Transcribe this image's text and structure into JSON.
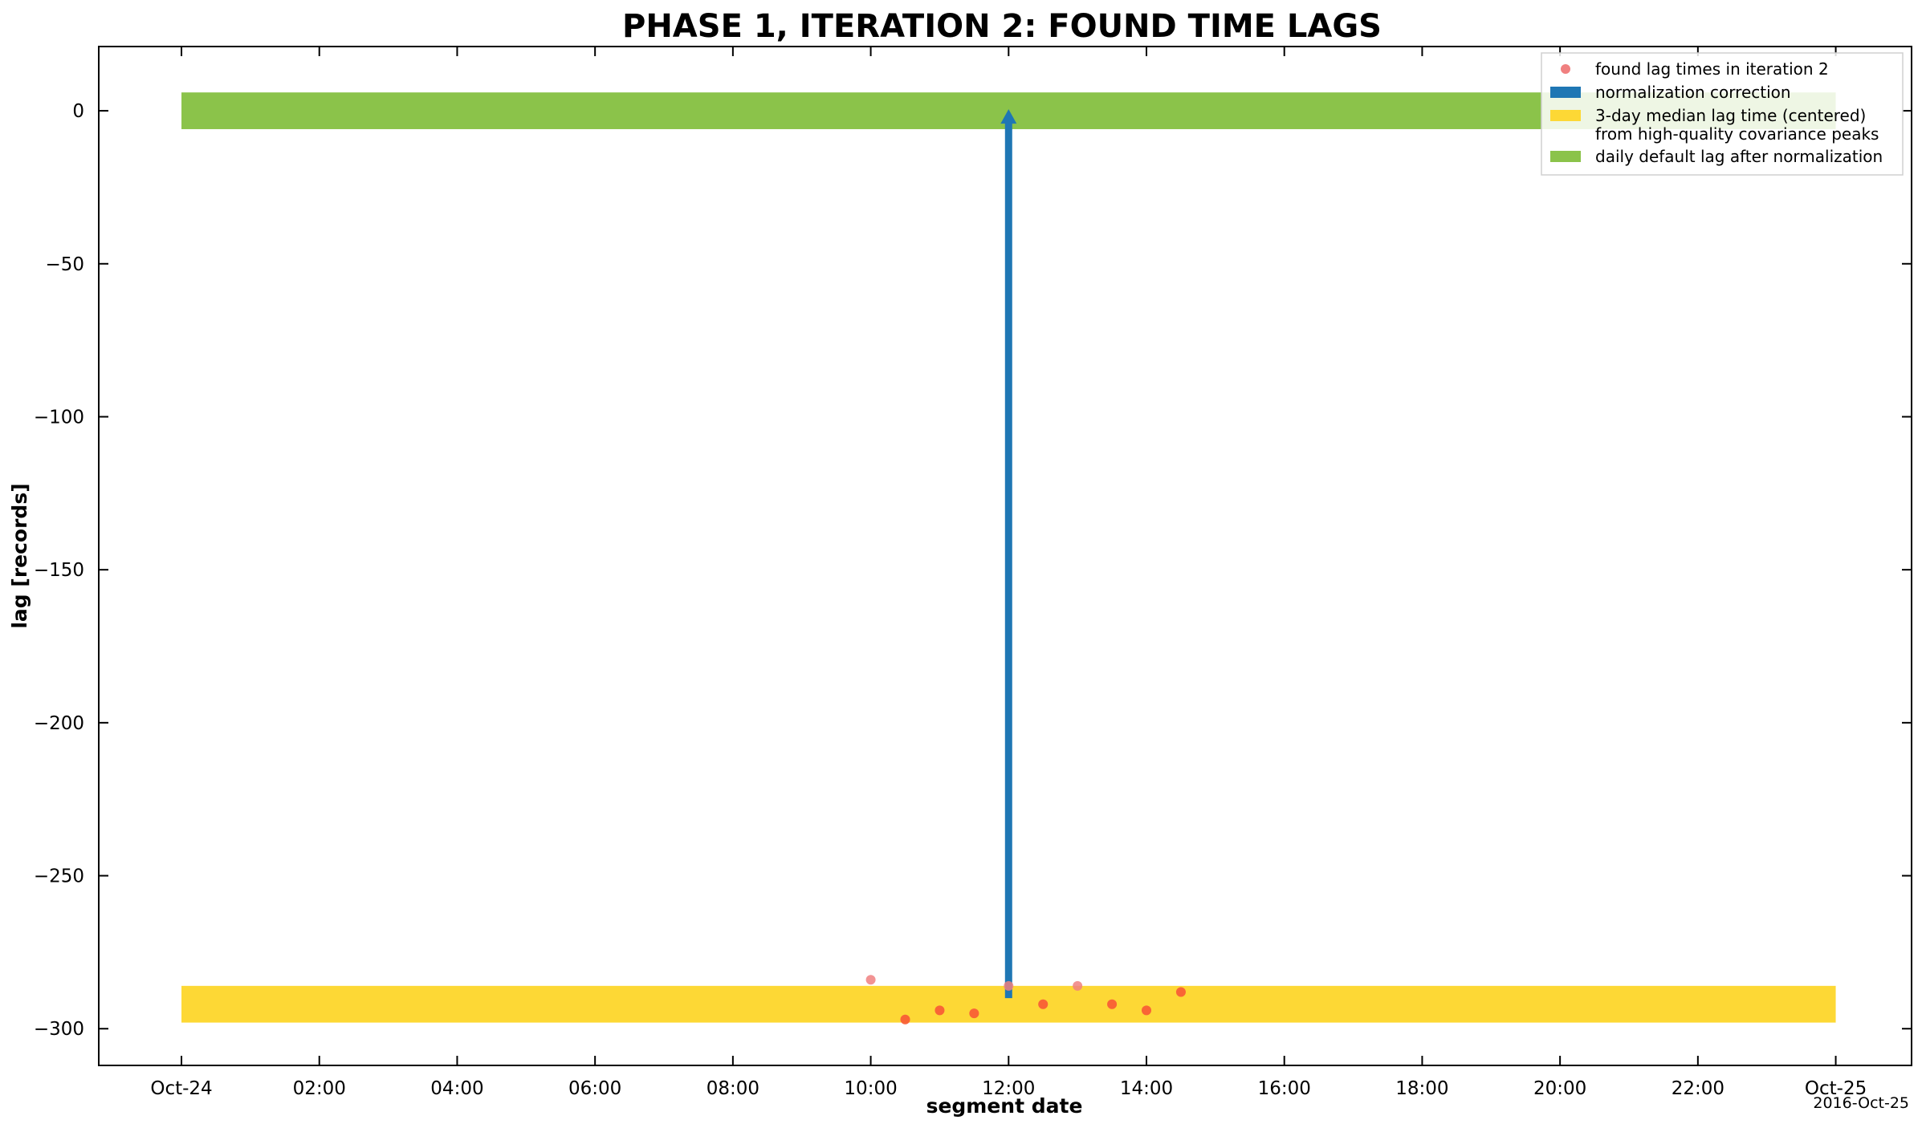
{
  "chart_data": {
    "type": "scatter",
    "title": "PHASE 1, ITERATION 2: FOUND TIME LAGS",
    "xlabel": "segment date",
    "ylabel": "lag  [records]",
    "corner_note": "2016-Oct-25",
    "x_range_hours": [
      -2.4,
      50.2
    ],
    "ylim": [
      -312,
      21
    ],
    "x_ticks": [
      {
        "hour": 0,
        "label": "Oct-24"
      },
      {
        "hour": 4,
        "label": "02:00"
      },
      {
        "hour": 8,
        "label": "04:00"
      },
      {
        "hour": 12,
        "label": "06:00"
      },
      {
        "hour": 16,
        "label": "08:00"
      },
      {
        "hour": 20,
        "label": "10:00"
      },
      {
        "hour": 24,
        "label": "12:00"
      },
      {
        "hour": 28,
        "label": "14:00"
      },
      {
        "hour": 32,
        "label": "16:00"
      },
      {
        "hour": 36,
        "label": "18:00"
      },
      {
        "hour": 40,
        "label": "20:00"
      },
      {
        "hour": 44,
        "label": "22:00"
      },
      {
        "hour": 48,
        "label": "Oct-25"
      }
    ],
    "y_ticks": [
      {
        "value": 0,
        "label": "0"
      },
      {
        "value": -50,
        "label": "−50"
      },
      {
        "value": -100,
        "label": "−100"
      },
      {
        "value": -150,
        "label": "−150"
      },
      {
        "value": -200,
        "label": "−200"
      },
      {
        "value": -250,
        "label": "−250"
      },
      {
        "value": -300,
        "label": "−300"
      }
    ],
    "grid": false,
    "legend_position": "top-right",
    "series": [
      {
        "name": "found lag times in iteration 2",
        "kind": "scatter",
        "color": "#f08080",
        "points": [
          {
            "time": "10:00",
            "y": -284
          },
          {
            "time": "10:30",
            "y": -297
          },
          {
            "time": "11:00",
            "y": -294
          },
          {
            "time": "11:30",
            "y": -295
          },
          {
            "time": "12:00",
            "y": -286
          },
          {
            "time": "12:30",
            "y": -292
          },
          {
            "time": "13:00",
            "y": -286
          },
          {
            "time": "13:30",
            "y": -292
          },
          {
            "time": "14:00",
            "y": -294
          },
          {
            "time": "14:30",
            "y": -288
          }
        ]
      },
      {
        "name": "normalization correction",
        "kind": "arrow",
        "color": "#1f77b4",
        "time": "12:00",
        "from": -290,
        "to": 0
      },
      {
        "name": "3-day median lag time (centered)\nfrom high-quality covariance peaks",
        "kind": "band",
        "color": "#fdd835",
        "start": "Oct-24",
        "end": "Oct-25",
        "ymin": -298,
        "ymax": -286
      },
      {
        "name": "daily default lag after normalization",
        "kind": "band",
        "color": "#8bc34a",
        "start": "Oct-24",
        "end": "Oct-25",
        "ymin": -6,
        "ymax": 6
      }
    ],
    "legend": [
      {
        "label_lines": [
          "found lag times in iteration 2"
        ],
        "marker": "dot",
        "color": "#f08080"
      },
      {
        "label_lines": [
          "normalization correction"
        ],
        "marker": "rect",
        "color": "#1f77b4"
      },
      {
        "label_lines": [
          "3-day median lag time (centered)",
          "from high-quality covariance peaks"
        ],
        "marker": "rect",
        "color": "#fdd835"
      },
      {
        "label_lines": [
          "daily default lag after normalization"
        ],
        "marker": "rect",
        "color": "#8bc34a"
      }
    ]
  }
}
